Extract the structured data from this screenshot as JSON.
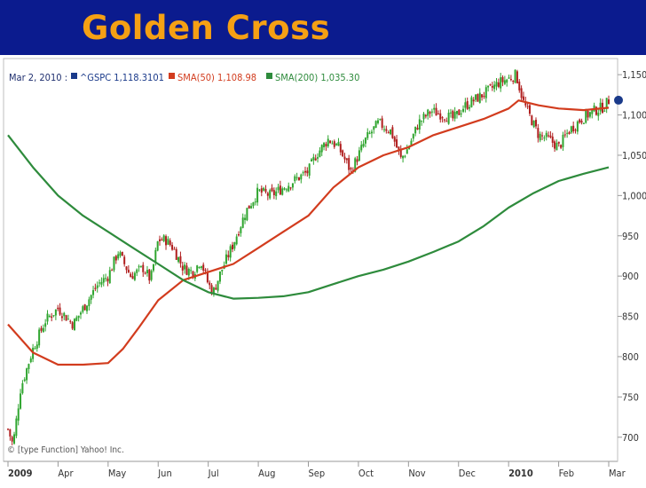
{
  "slide": {
    "title": "Golden Cross"
  },
  "legend": {
    "date": "Mar 2, 2010 :",
    "items": [
      {
        "label": "^GSPC 1,118.3101",
        "color": "#1a3a8a"
      },
      {
        "label": "SMA(50) 1,108.98",
        "color": "#d23c1e"
      },
      {
        "label": "SMA(200) 1,035.30",
        "color": "#2e8b3c"
      }
    ]
  },
  "credit": "© [type Function] Yahoo! Inc.",
  "colors": {
    "up": "#2fa52f",
    "down": "#b01e1e",
    "sma50": "#d23c1e",
    "sma200": "#2e8b3c",
    "marker": "#1a3a8a"
  },
  "chart_data": {
    "type": "line",
    "y_ticks": [
      "1,150",
      "1,100",
      "1,050",
      "1,000",
      "950",
      "900",
      "850",
      "800",
      "750",
      "700"
    ],
    "y_values": [
      1150,
      1100,
      1050,
      1000,
      950,
      900,
      850,
      800,
      750,
      700
    ],
    "ylim": [
      670,
      1170
    ],
    "x_ticks": [
      {
        "label": "2009",
        "month": 0
      },
      {
        "label": "Apr",
        "month": 1
      },
      {
        "label": "May",
        "month": 2
      },
      {
        "label": "Jun",
        "month": 3
      },
      {
        "label": "Jul",
        "month": 4
      },
      {
        "label": "Aug",
        "month": 5
      },
      {
        "label": "Sep",
        "month": 6
      },
      {
        "label": "Oct",
        "month": 7
      },
      {
        "label": "Nov",
        "month": 8
      },
      {
        "label": "Dec",
        "month": 9
      },
      {
        "label": "2010",
        "month": 10
      },
      {
        "label": "Feb",
        "month": 11
      },
      {
        "label": "Mar",
        "month": 12
      }
    ],
    "series": [
      {
        "name": "^GSPC",
        "values": [
          [
            0,
            710
          ],
          [
            0.1,
            690
          ],
          [
            0.25,
            760
          ],
          [
            0.5,
            810
          ],
          [
            0.75,
            845
          ],
          [
            1.0,
            860
          ],
          [
            1.3,
            840
          ],
          [
            1.6,
            870
          ],
          [
            1.8,
            890
          ],
          [
            2.0,
            900
          ],
          [
            2.2,
            930
          ],
          [
            2.45,
            900
          ],
          [
            2.7,
            910
          ],
          [
            2.85,
            895
          ],
          [
            3.0,
            945
          ],
          [
            3.15,
            945
          ],
          [
            3.3,
            935
          ],
          [
            3.5,
            910
          ],
          [
            3.7,
            905
          ],
          [
            3.85,
            920
          ],
          [
            4.0,
            890
          ],
          [
            4.1,
            880
          ],
          [
            4.25,
            905
          ],
          [
            4.5,
            940
          ],
          [
            4.75,
            980
          ],
          [
            5.0,
            1005
          ],
          [
            5.25,
            1000
          ],
          [
            5.5,
            1010
          ],
          [
            5.75,
            1020
          ],
          [
            6.0,
            1030
          ],
          [
            6.15,
            1050
          ],
          [
            6.4,
            1070
          ],
          [
            6.6,
            1060
          ],
          [
            6.85,
            1030
          ],
          [
            7.0,
            1050
          ],
          [
            7.15,
            1070
          ],
          [
            7.4,
            1090
          ],
          [
            7.65,
            1080
          ],
          [
            7.85,
            1045
          ],
          [
            8.0,
            1060
          ],
          [
            8.2,
            1090
          ],
          [
            8.45,
            1105
          ],
          [
            8.7,
            1100
          ],
          [
            8.9,
            1095
          ],
          [
            9.1,
            1110
          ],
          [
            9.35,
            1120
          ],
          [
            9.6,
            1130
          ],
          [
            9.8,
            1140
          ],
          [
            10.0,
            1145
          ],
          [
            10.15,
            1150
          ],
          [
            10.3,
            1115
          ],
          [
            10.45,
            1095
          ],
          [
            10.6,
            1075
          ],
          [
            10.8,
            1070
          ],
          [
            11.0,
            1060
          ],
          [
            11.2,
            1080
          ],
          [
            11.45,
            1095
          ],
          [
            11.7,
            1105
          ],
          [
            11.9,
            1110
          ],
          [
            12.0,
            1118
          ]
        ]
      },
      {
        "name": "SMA(50)",
        "values": [
          [
            0,
            840
          ],
          [
            0.5,
            805
          ],
          [
            1.0,
            790
          ],
          [
            1.5,
            790
          ],
          [
            2.0,
            792
          ],
          [
            2.3,
            810
          ],
          [
            2.6,
            835
          ],
          [
            3.0,
            870
          ],
          [
            3.5,
            895
          ],
          [
            4.0,
            905
          ],
          [
            4.5,
            915
          ],
          [
            5.0,
            935
          ],
          [
            5.5,
            955
          ],
          [
            6.0,
            975
          ],
          [
            6.5,
            1010
          ],
          [
            7.0,
            1035
          ],
          [
            7.5,
            1050
          ],
          [
            8.0,
            1060
          ],
          [
            8.5,
            1075
          ],
          [
            9.0,
            1085
          ],
          [
            9.5,
            1095
          ],
          [
            10.0,
            1108
          ],
          [
            10.2,
            1118
          ],
          [
            10.6,
            1112
          ],
          [
            11.0,
            1108
          ],
          [
            11.5,
            1106
          ],
          [
            12.0,
            1109
          ]
        ]
      },
      {
        "name": "SMA(200)",
        "values": [
          [
            0,
            1075
          ],
          [
            0.5,
            1035
          ],
          [
            1.0,
            1000
          ],
          [
            1.5,
            975
          ],
          [
            2.0,
            955
          ],
          [
            2.5,
            935
          ],
          [
            3.0,
            915
          ],
          [
            3.5,
            895
          ],
          [
            4.0,
            880
          ],
          [
            4.5,
            872
          ],
          [
            5.0,
            873
          ],
          [
            5.5,
            875
          ],
          [
            6.0,
            880
          ],
          [
            6.5,
            890
          ],
          [
            7.0,
            900
          ],
          [
            7.5,
            908
          ],
          [
            8.0,
            918
          ],
          [
            8.5,
            930
          ],
          [
            9.0,
            943
          ],
          [
            9.5,
            962
          ],
          [
            10.0,
            985
          ],
          [
            10.5,
            1003
          ],
          [
            11.0,
            1018
          ],
          [
            11.5,
            1027
          ],
          [
            12.0,
            1035
          ]
        ]
      }
    ],
    "last_value": 1118.31,
    "grid": false
  }
}
